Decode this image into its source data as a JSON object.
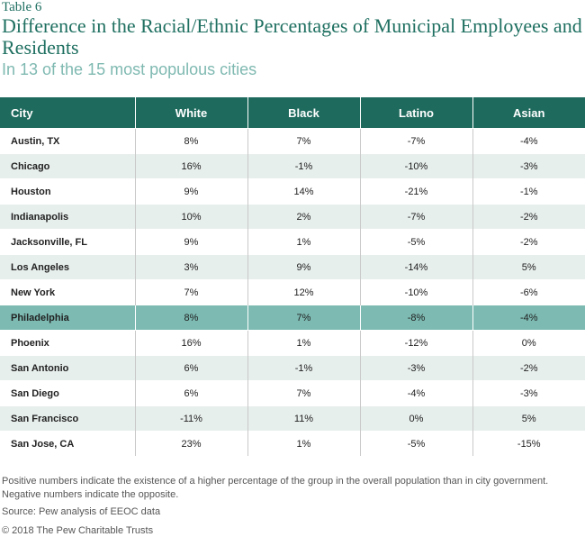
{
  "header": {
    "eyebrow": "Table 6",
    "title": "Difference in the Racial/Ethnic Percentages of Municipal Employees and Residents",
    "subtitle": "In 13 of the 15 most populous cities"
  },
  "table": {
    "columns": [
      "City",
      "White",
      "Black",
      "Latino",
      "Asian"
    ],
    "highlight_color": "#7cbab2",
    "header_color": "#1e6a5d",
    "rows": [
      {
        "city": "Austin, TX",
        "white": "8%",
        "black": "7%",
        "latino": "-7%",
        "asian": "-4%"
      },
      {
        "city": "Chicago",
        "white": "16%",
        "black": "-1%",
        "latino": "-10%",
        "asian": "-3%"
      },
      {
        "city": "Houston",
        "white": "9%",
        "black": "14%",
        "latino": "-21%",
        "asian": "-1%"
      },
      {
        "city": "Indianapolis",
        "white": "10%",
        "black": "2%",
        "latino": "-7%",
        "asian": "-2%"
      },
      {
        "city": "Jacksonville, FL",
        "white": "9%",
        "black": "1%",
        "latino": "-5%",
        "asian": "-2%"
      },
      {
        "city": "Los Angeles",
        "white": "3%",
        "black": "9%",
        "latino": "-14%",
        "asian": "5%"
      },
      {
        "city": "New York",
        "white": "7%",
        "black": "12%",
        "latino": "-10%",
        "asian": "-6%"
      },
      {
        "city": "Philadelphia",
        "white": "8%",
        "black": "7%",
        "latino": "-8%",
        "asian": "-4%"
      },
      {
        "city": "Phoenix",
        "white": "16%",
        "black": "1%",
        "latino": "-12%",
        "asian": "0%"
      },
      {
        "city": "San Antonio",
        "white": "6%",
        "black": "-1%",
        "latino": "-3%",
        "asian": "-2%"
      },
      {
        "city": "San Diego",
        "white": "6%",
        "black": "7%",
        "latino": "-4%",
        "asian": "-3%"
      },
      {
        "city": "San Francisco",
        "white": "-11%",
        "black": "11%",
        "latino": "0%",
        "asian": "5%"
      },
      {
        "city": "San Jose, CA",
        "white": "23%",
        "black": "1%",
        "latino": "-5%",
        "asian": "-15%"
      }
    ]
  },
  "footer": {
    "notes": "Positive numbers indicate the existence of a higher percentage of the group in the overall population than in city government. Negative numbers indicate the opposite.",
    "source": "Source: Pew analysis of EEOC data",
    "copyright": "© 2018 The Pew Charitable Trusts"
  }
}
